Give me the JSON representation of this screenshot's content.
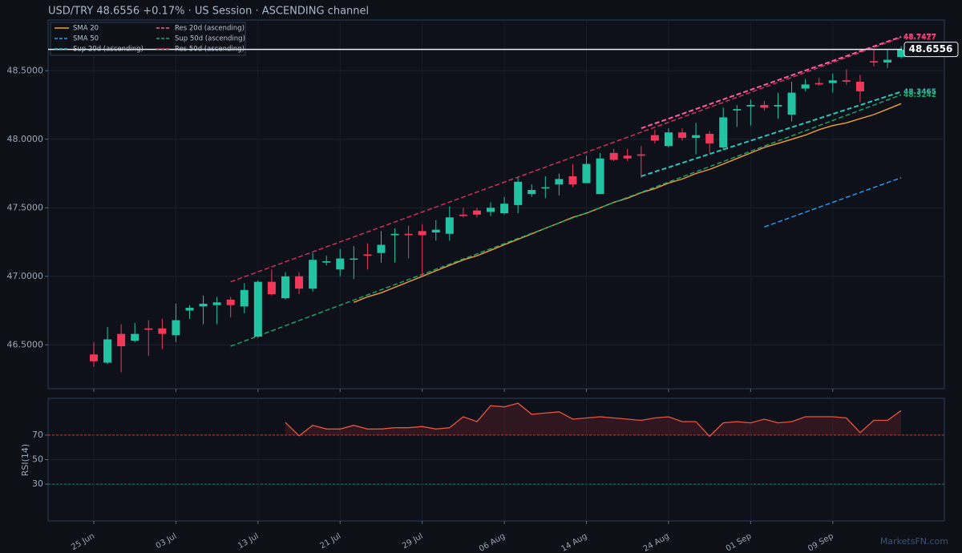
{
  "chart_data": [
    {
      "type": "candlestick",
      "title": "USD/TRY   48.6556   +0.17%  ·  US Session  ·  ASCENDING channel",
      "categories": [
        "25 Jun",
        null,
        null,
        null,
        null,
        null,
        "03 Jul",
        null,
        null,
        null,
        null,
        null,
        "13 Jul",
        null,
        null,
        null,
        null,
        null,
        "21 Jul",
        null,
        null,
        null,
        null,
        null,
        "29 Jul",
        null,
        null,
        null,
        null,
        null,
        "06 Aug",
        null,
        null,
        null,
        null,
        null,
        "14 Aug",
        null,
        null,
        null,
        null,
        null,
        "24 Aug",
        null,
        null,
        null,
        null,
        null,
        "01 Sep",
        null,
        null,
        null,
        null,
        null,
        "09 Sep",
        null,
        null,
        null,
        null,
        null
      ],
      "open": [
        46.43,
        46.37,
        46.58,
        46.53,
        46.62,
        46.62,
        46.57,
        46.75,
        46.78,
        46.79,
        46.83,
        46.78,
        46.56,
        46.96,
        46.84,
        47.0,
        46.91,
        47.1,
        47.05,
        47.13,
        47.16,
        47.17,
        47.3,
        47.31,
        47.33,
        47.32,
        47.31,
        47.45,
        47.48,
        47.47,
        47.46,
        47.52,
        47.6,
        47.65,
        47.67,
        47.73,
        47.68,
        47.6,
        47.9,
        47.88,
        47.89,
        48.03,
        47.95,
        48.05,
        48.01,
        48.04,
        47.94,
        48.21,
        48.24,
        48.25,
        48.24,
        48.18,
        48.37,
        48.41,
        48.41,
        48.43,
        48.42,
        48.57,
        48.56,
        48.6
      ],
      "high": [
        46.52,
        46.63,
        46.65,
        46.66,
        46.68,
        46.69,
        46.8,
        46.79,
        46.86,
        46.85,
        46.85,
        46.95,
        46.97,
        47.05,
        47.03,
        47.03,
        47.17,
        47.15,
        47.2,
        47.22,
        47.24,
        47.33,
        47.35,
        47.37,
        47.38,
        47.41,
        47.51,
        47.5,
        47.5,
        47.54,
        47.58,
        47.72,
        47.67,
        47.73,
        47.75,
        47.82,
        47.88,
        47.9,
        47.93,
        47.93,
        47.95,
        48.07,
        48.08,
        48.08,
        48.12,
        48.06,
        48.23,
        48.25,
        48.29,
        48.28,
        48.34,
        48.42,
        48.44,
        48.45,
        48.48,
        48.51,
        48.47,
        48.65,
        48.65,
        48.68
      ],
      "low": [
        46.34,
        46.36,
        46.3,
        46.52,
        46.42,
        46.47,
        46.52,
        46.69,
        46.65,
        46.65,
        46.7,
        46.73,
        46.55,
        46.86,
        46.83,
        46.87,
        46.89,
        47.08,
        47.0,
        46.98,
        47.05,
        47.1,
        47.1,
        47.13,
        47.0,
        47.26,
        47.26,
        47.43,
        47.43,
        47.44,
        47.45,
        47.46,
        47.58,
        47.57,
        47.59,
        47.65,
        47.68,
        47.6,
        47.84,
        47.84,
        47.72,
        47.97,
        47.94,
        47.99,
        47.89,
        47.9,
        47.92,
        48.09,
        48.1,
        48.21,
        48.15,
        48.13,
        48.35,
        48.39,
        48.34,
        48.4,
        48.27,
        48.53,
        48.52,
        48.59
      ],
      "close": [
        46.38,
        46.54,
        46.49,
        46.58,
        46.61,
        46.58,
        46.68,
        46.77,
        46.8,
        46.81,
        46.79,
        46.9,
        46.96,
        46.87,
        47.0,
        46.91,
        47.12,
        47.11,
        47.13,
        47.13,
        47.15,
        47.23,
        47.31,
        47.3,
        47.3,
        47.34,
        47.43,
        47.44,
        47.45,
        47.5,
        47.53,
        47.69,
        47.63,
        47.65,
        47.71,
        47.67,
        47.82,
        47.86,
        47.85,
        47.86,
        47.88,
        47.99,
        48.05,
        48.01,
        48.03,
        47.97,
        48.16,
        48.22,
        48.25,
        48.23,
        48.25,
        48.34,
        48.4,
        48.4,
        48.43,
        48.42,
        48.35,
        48.56,
        48.58,
        48.6556
      ],
      "up_color": "#22c3a2",
      "down_color": "#f0385a",
      "series": [
        {
          "name": "SMA 20",
          "color": "#f0a034",
          "dash": false,
          "values": [
            null,
            null,
            null,
            null,
            null,
            null,
            null,
            null,
            null,
            null,
            null,
            null,
            null,
            null,
            null,
            null,
            null,
            null,
            null,
            46.81,
            46.85,
            46.88,
            46.92,
            46.96,
            47.0,
            47.04,
            47.08,
            47.12,
            47.15,
            47.19,
            47.23,
            47.27,
            47.31,
            47.35,
            47.39,
            47.43,
            47.46,
            47.5,
            47.54,
            47.57,
            47.61,
            47.64,
            47.68,
            47.71,
            47.75,
            47.78,
            47.82,
            47.86,
            47.9,
            47.94,
            47.97,
            48.0,
            48.03,
            48.07,
            48.1,
            48.12,
            48.15,
            48.18,
            48.22,
            48.26
          ]
        },
        {
          "name": "SMA 50",
          "color": "#2a9df4",
          "dash": true,
          "x": [
            49,
            59
          ],
          "values": [
            47.36,
            47.72
          ]
        },
        {
          "name": "Sup 20d (ascending)",
          "color": "#2ec4b6",
          "dash": true,
          "width": 2,
          "x": [
            40,
            59
          ],
          "values": [
            47.73,
            48.3465
          ],
          "end_label": true
        },
        {
          "name": "Res 20d (ascending)",
          "color": "#ff5fa0",
          "dash": true,
          "width": 2,
          "x": [
            40,
            59
          ],
          "values": [
            48.08,
            48.7477
          ],
          "end_label": true
        },
        {
          "name": "Sup 50d (ascending)",
          "color": "#1fa86a",
          "dash": true,
          "x": [
            10,
            59
          ],
          "values": [
            46.49,
            48.3242
          ],
          "end_label": true
        },
        {
          "name": "Res 50d (ascending)",
          "color": "#d6335c",
          "dash": true,
          "x": [
            10,
            59
          ],
          "values": [
            46.96,
            48.7427
          ],
          "end_label": true
        }
      ],
      "last_price": 48.6556,
      "ylim": [
        46.18,
        48.87
      ],
      "yticks": [
        {
          "value": 46.5,
          "label": "46.5000"
        },
        {
          "value": 47,
          "label": "47.0000"
        },
        {
          "value": 47.5,
          "label": "47.5000"
        },
        {
          "value": 48,
          "label": "48.0000"
        },
        {
          "value": 48.5,
          "label": "48.5000"
        }
      ],
      "grid": true,
      "legend": "upper left"
    },
    {
      "type": "line",
      "ylabel": "RSI(14)",
      "color": "#e8553f",
      "values": [
        null,
        null,
        null,
        null,
        null,
        null,
        null,
        null,
        null,
        null,
        null,
        null,
        null,
        null,
        80.3,
        69.4,
        78,
        75,
        75,
        78,
        75,
        75,
        76,
        76,
        77,
        75,
        76,
        85,
        81,
        94,
        93,
        96,
        87,
        88,
        89,
        83,
        84,
        85,
        84,
        83,
        82,
        84,
        85,
        81,
        81,
        69,
        80,
        81,
        80,
        83,
        80,
        81,
        85,
        85,
        85,
        84,
        72,
        82,
        82,
        90
      ],
      "ylim": [
        0,
        100
      ],
      "yticks": [
        30,
        50,
        70
      ],
      "ref_lines": [
        {
          "value": 70,
          "color": "#d9503f"
        },
        {
          "value": 30,
          "color": "#1fa07a"
        }
      ],
      "grid": true,
      "watermark": "MarketsFN.com"
    }
  ]
}
